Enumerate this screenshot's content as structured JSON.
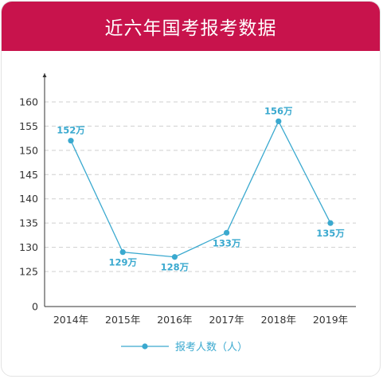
{
  "header": {
    "title": "近六年国考报考数据"
  },
  "colors": {
    "banner": "#c8134c",
    "series": "#3aa9cf",
    "grid": "#cfcfcf",
    "axis": "#333333"
  },
  "chart_data": {
    "type": "line",
    "title": "近六年国考报考数据",
    "categories": [
      "2014年",
      "2015年",
      "2016年",
      "2017年",
      "2018年",
      "2019年"
    ],
    "y_ticks": [
      0,
      125,
      130,
      135,
      140,
      145,
      150,
      155,
      160
    ],
    "y_axis_break": "0 to 125",
    "grid": "horizontal dashed",
    "legend_position": "bottom-center",
    "series": [
      {
        "name": "报考人数（人）",
        "values": [
          152,
          129,
          128,
          133,
          156,
          135
        ],
        "data_labels": [
          "152万",
          "129万",
          "128万",
          "133万",
          "156万",
          "135万"
        ],
        "label_positions": [
          "above",
          "below",
          "below",
          "below",
          "above",
          "below"
        ]
      }
    ]
  }
}
